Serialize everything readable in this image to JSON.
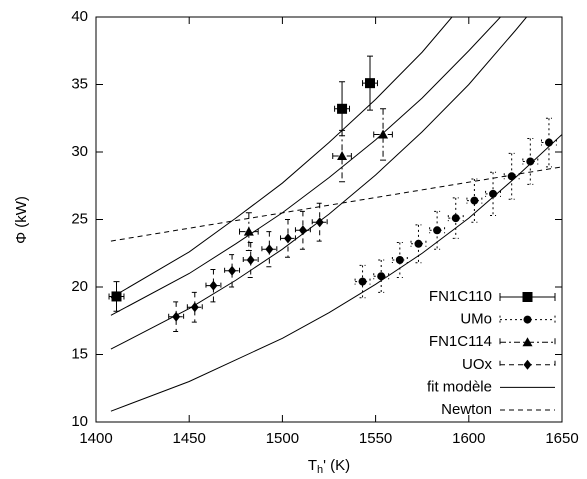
{
  "chart_data": {
    "type": "scatter",
    "xlabel": {
      "main": "T",
      "sub": "h",
      "rest": "' (K)"
    },
    "ylabel": "Φ (kW)",
    "xlim": [
      1400,
      1650
    ],
    "xticks": [
      1400,
      1450,
      1500,
      1550,
      1600,
      1650
    ],
    "ylim": [
      10,
      40
    ],
    "yticks": [
      10,
      15,
      20,
      25,
      30,
      35,
      40
    ],
    "grid": false,
    "legend": "bottom-right",
    "color": "#000000",
    "series": [
      {
        "name": "FN1C110",
        "kind": "points",
        "marker": "square",
        "errorbar_style": "solid",
        "x": [
          1411,
          1532,
          1547
        ],
        "values": [
          19.3,
          33.2,
          35.1
        ],
        "xerr": [
          4,
          4,
          4
        ],
        "yerr": [
          1.1,
          2.0,
          2.0
        ]
      },
      {
        "name": "UMo",
        "kind": "points",
        "marker": "circle",
        "errorbar_style": "dotted",
        "x": [
          1543,
          1553,
          1563,
          1573,
          1583,
          1593,
          1603,
          1613,
          1623,
          1633,
          1643
        ],
        "values": [
          20.4,
          20.8,
          22.0,
          23.2,
          24.2,
          25.1,
          26.4,
          26.9,
          28.2,
          29.3,
          30.7
        ],
        "xerr": [
          4,
          4,
          4,
          4,
          4,
          4,
          4,
          4,
          4,
          4,
          4
        ],
        "yerr": [
          1.2,
          1.2,
          1.3,
          1.4,
          1.4,
          1.5,
          1.6,
          1.6,
          1.7,
          1.7,
          1.8
        ]
      },
      {
        "name": "FN1C114",
        "kind": "points",
        "marker": "triangle",
        "errorbar_style": "dashdot",
        "x": [
          1482,
          1532,
          1554
        ],
        "values": [
          24.1,
          29.7,
          31.3
        ],
        "xerr": [
          5,
          5,
          5
        ],
        "yerr": [
          1.4,
          1.9,
          1.9
        ]
      },
      {
        "name": "UOx",
        "kind": "points",
        "marker": "diamond",
        "errorbar_style": "dashed",
        "x": [
          1443,
          1453,
          1463,
          1473,
          1483,
          1493,
          1503,
          1511,
          1520
        ],
        "values": [
          17.8,
          18.5,
          20.1,
          21.2,
          22.0,
          22.8,
          23.6,
          24.2,
          24.8
        ],
        "xerr": [
          4,
          4,
          4,
          4,
          4,
          4,
          4,
          4,
          4
        ],
        "yerr": [
          1.1,
          1.1,
          1.2,
          1.2,
          1.3,
          1.3,
          1.4,
          1.4,
          1.4
        ]
      },
      {
        "name": "fit modèle",
        "kind": "curves",
        "line_style": "solid",
        "curves": [
          {
            "x": [
              1408,
              1450,
              1475,
              1500,
              1525,
              1550,
              1575,
              1591
            ],
            "values": [
              19.2,
              22.6,
              25.1,
              27.7,
              30.7,
              33.9,
              37.4,
              40
            ]
          },
          {
            "x": [
              1408,
              1450,
              1475,
              1500,
              1525,
              1550,
              1575,
              1600,
              1617
            ],
            "values": [
              17.9,
              21.0,
              23.2,
              25.5,
              28.1,
              30.9,
              34.0,
              37.5,
              40
            ]
          },
          {
            "x": [
              1408,
              1450,
              1475,
              1500,
              1525,
              1550,
              1575,
              1600,
              1625,
              1631
            ],
            "values": [
              15.4,
              18.4,
              20.5,
              22.8,
              25.4,
              28.3,
              31.5,
              35.0,
              39.0,
              40
            ]
          },
          {
            "x": [
              1408,
              1450,
              1500,
              1525,
              1550,
              1575,
              1600,
              1625,
              1650
            ],
            "values": [
              10.8,
              13.0,
              16.2,
              18.1,
              20.2,
              22.5,
              25.1,
              28.1,
              31.3
            ]
          }
        ]
      },
      {
        "name": "Newton",
        "kind": "curves",
        "line_style": "dashed",
        "curves": [
          {
            "x": [
              1408,
              1650
            ],
            "values": [
              23.4,
              28.9
            ]
          }
        ]
      }
    ]
  }
}
